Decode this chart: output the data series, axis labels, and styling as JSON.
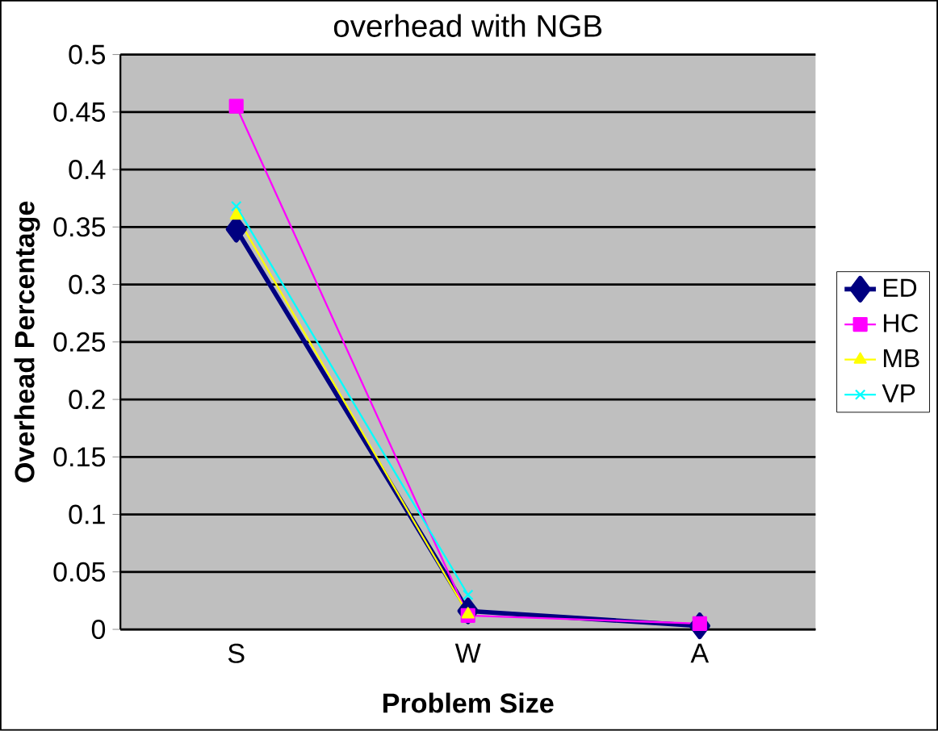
{
  "chart_data": {
    "type": "line",
    "title": "overhead with NGB",
    "xlabel": "Problem Size",
    "ylabel": "Overhead Percentage",
    "categories": [
      "S",
      "W",
      "A"
    ],
    "series": [
      {
        "name": "ED",
        "color": "#000080",
        "marker": "diamond",
        "values": [
          0.348,
          0.016,
          0.003
        ]
      },
      {
        "name": "HC",
        "color": "#ff00ff",
        "marker": "square",
        "values": [
          0.455,
          0.012,
          0.005
        ]
      },
      {
        "name": "MB",
        "color": "#ffff00",
        "marker": "triangle",
        "values": [
          0.36,
          0.013,
          null
        ]
      },
      {
        "name": "VP",
        "color": "#00ffff",
        "marker": "cross",
        "values": [
          0.368,
          0.03,
          null
        ]
      }
    ],
    "ylim": [
      0,
      0.5
    ],
    "yticks": [
      0,
      0.05,
      0.1,
      0.15,
      0.2,
      0.25,
      0.3,
      0.35,
      0.4,
      0.45,
      0.5
    ],
    "grid": "y",
    "legend": "right"
  }
}
